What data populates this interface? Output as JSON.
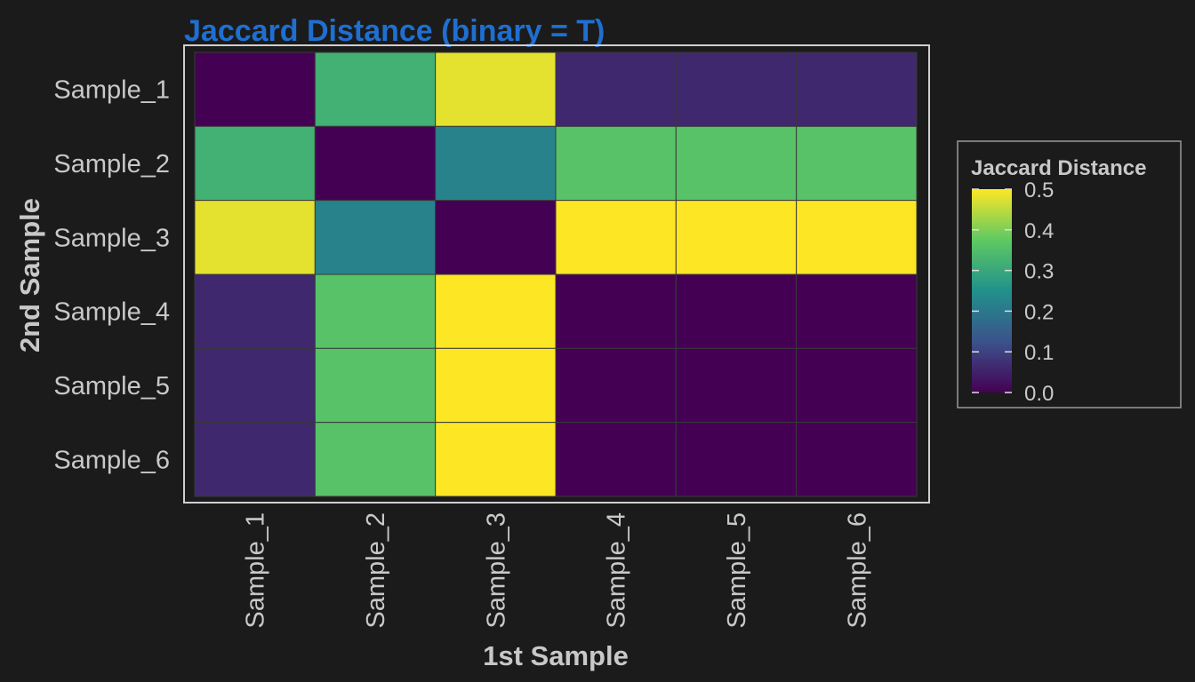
{
  "chart_data": {
    "type": "heatmap",
    "title": "Jaccard Distance (binary = T)",
    "xlabel": "1st Sample",
    "ylabel": "2nd Sample",
    "x_categories": [
      "Sample_1",
      "Sample_2",
      "Sample_3",
      "Sample_4",
      "Sample_5",
      "Sample_6"
    ],
    "y_categories": [
      "Sample_1",
      "Sample_2",
      "Sample_3",
      "Sample_4",
      "Sample_5",
      "Sample_6"
    ],
    "values": [
      [
        0.0,
        0.32,
        0.48,
        0.06,
        0.06,
        0.06
      ],
      [
        0.32,
        0.0,
        0.22,
        0.36,
        0.36,
        0.36
      ],
      [
        0.48,
        0.22,
        0.0,
        0.5,
        0.5,
        0.5
      ],
      [
        0.06,
        0.36,
        0.5,
        0.0,
        0.0,
        0.0
      ],
      [
        0.06,
        0.36,
        0.5,
        0.0,
        0.0,
        0.0
      ],
      [
        0.06,
        0.36,
        0.5,
        0.0,
        0.0,
        0.0
      ]
    ],
    "legend": {
      "title": "Jaccard Distance",
      "placement": "right",
      "ticks": [
        "0.0",
        "0.1",
        "0.2",
        "0.3",
        "0.4",
        "0.5"
      ],
      "range": [
        0,
        0.5
      ]
    },
    "colormap": [
      "#440154",
      "#3b528b",
      "#21918c",
      "#5ec962",
      "#fde725"
    ],
    "colors": {
      "background": "#1b1b1b",
      "title": "#1f6fd1",
      "text": "#c8c8c8",
      "panel_border": "#cfcfcf"
    }
  }
}
